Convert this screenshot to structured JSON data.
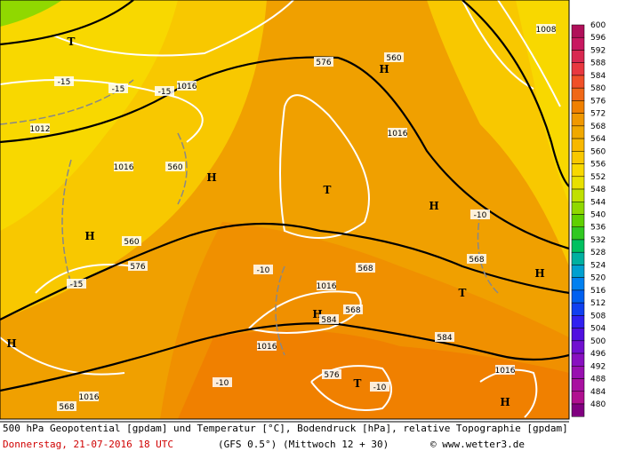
{
  "map": {
    "pressure_centers": [
      "T",
      "H",
      "H",
      "T",
      "H",
      "H",
      "T",
      "H",
      "H",
      "H",
      "T",
      "H"
    ],
    "contour_labels": [
      "576",
      "576",
      "584",
      "584",
      "1016",
      "1016",
      "1016",
      "1016",
      "1016",
      "1016",
      "1016",
      "1008",
      "1012",
      "-15",
      "-15",
      "-15",
      "-15",
      "-10",
      "-10",
      "-10",
      "-10",
      "560",
      "560",
      "560",
      "568",
      "568",
      "568",
      "576",
      "568"
    ]
  },
  "colorbar": {
    "labels": [
      "600",
      "596",
      "592",
      "588",
      "584",
      "580",
      "576",
      "572",
      "568",
      "564",
      "560",
      "556",
      "552",
      "548",
      "544",
      "540",
      "536",
      "532",
      "528",
      "524",
      "520",
      "516",
      "512",
      "508",
      "504",
      "500",
      "496",
      "492",
      "488",
      "484",
      "480"
    ],
    "colors": [
      "#b0105a",
      "#c81860",
      "#d82850",
      "#e83840",
      "#f05028",
      "#f06818",
      "#f08000",
      "#f09800",
      "#f0a800",
      "#f8b800",
      "#f8c800",
      "#f8d800",
      "#e8e000",
      "#c0e000",
      "#90d800",
      "#60d000",
      "#30c820",
      "#00c060",
      "#00b0a0",
      "#00a0d0",
      "#0080f0",
      "#0060f0",
      "#1040f0",
      "#3020f0",
      "#5010e0",
      "#7010d0",
      "#8810c0",
      "#9810b0",
      "#a810a0",
      "#b01090",
      "#800080"
    ]
  },
  "footer": {
    "line1": "500 hPa Geopotential [gpdam] und Temperatur [°C], Bodendruck [hPa], relative Topographie [gpdam]",
    "date": "Donnerstag, 21-07-2016  18 UTC",
    "model": "(GFS 0.5°)",
    "run": "(Mittwoch 12 + 30)",
    "credit": "© www.wetter3.de"
  }
}
